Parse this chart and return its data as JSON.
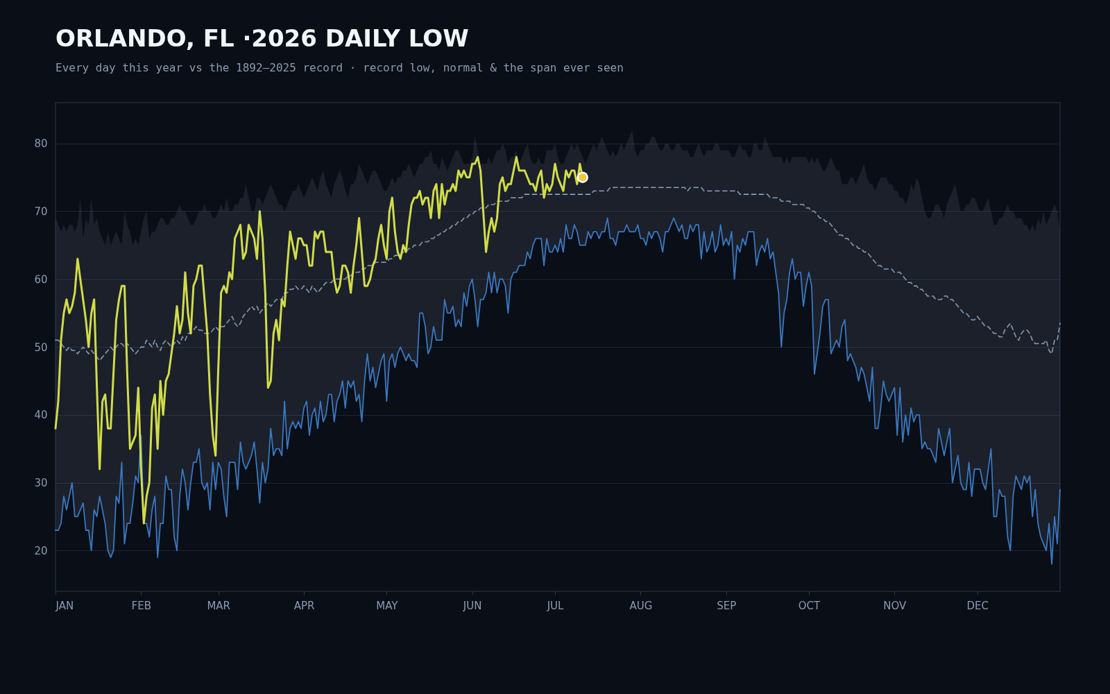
{
  "chart_data": {
    "type": "line",
    "title": "ORLANDO, FL ·2026 DAILY LOW",
    "subtitle": "Every day this year vs the 1892–2025 record · record low, normal & the span ever seen",
    "x": [
      "2026-01-01",
      "2026-01-02",
      "2026-01-03",
      "2026-01-04",
      "2026-01-05",
      "2026-01-06",
      "2026-01-07",
      "2026-01-08",
      "2026-01-09",
      "2026-01-10",
      "2026-01-11",
      "2026-01-12",
      "2026-01-13",
      "2026-01-14",
      "2026-01-15",
      "2026-01-16",
      "2026-01-17",
      "2026-01-18",
      "2026-01-19",
      "2026-01-20",
      "2026-01-21",
      "2026-01-22",
      "2026-01-23",
      "2026-01-24",
      "2026-01-25",
      "2026-01-26",
      "2026-01-27",
      "2026-01-28",
      "2026-01-29",
      "2026-01-30",
      "2026-01-31",
      "2026-02-01",
      "2026-02-02",
      "2026-02-03",
      "2026-02-04",
      "2026-02-05",
      "2026-02-06",
      "2026-02-07",
      "2026-02-08",
      "2026-02-09",
      "2026-02-10",
      "2026-02-11",
      "2026-02-12",
      "2026-02-13",
      "2026-02-14",
      "2026-02-15",
      "2026-02-16",
      "2026-02-17",
      "2026-02-18",
      "2026-02-19",
      "2026-02-20",
      "2026-02-21",
      "2026-02-22",
      "2026-02-23",
      "2026-02-24",
      "2026-02-25",
      "2026-02-26",
      "2026-02-27",
      "2026-02-28",
      "2026-03-01",
      "2026-03-02",
      "2026-03-03",
      "2026-03-04",
      "2026-03-05",
      "2026-03-06",
      "2026-03-07",
      "2026-03-08",
      "2026-03-09",
      "2026-03-10",
      "2026-03-11",
      "2026-03-12",
      "2026-03-13",
      "2026-03-14",
      "2026-03-15",
      "2026-03-16",
      "2026-03-17",
      "2026-03-18",
      "2026-03-19",
      "2026-03-20",
      "2026-03-21",
      "2026-03-22",
      "2026-03-23",
      "2026-03-24",
      "2026-03-25",
      "2026-03-26",
      "2026-03-27",
      "2026-03-28",
      "2026-03-29",
      "2026-03-30",
      "2026-03-31",
      "2026-04-01",
      "2026-04-02",
      "2026-04-03",
      "2026-04-04",
      "2026-04-05",
      "2026-04-06",
      "2026-04-07",
      "2026-04-08",
      "2026-04-09",
      "2026-04-10",
      "2026-04-11",
      "2026-04-12",
      "2026-04-13",
      "2026-04-14",
      "2026-04-15",
      "2026-04-16",
      "2026-04-17",
      "2026-04-18",
      "2026-04-19",
      "2026-04-20",
      "2026-04-21",
      "2026-04-22",
      "2026-04-23",
      "2026-04-24",
      "2026-04-25",
      "2026-04-26",
      "2026-04-27",
      "2026-04-28",
      "2026-04-29",
      "2026-04-30",
      "2026-05-01",
      "2026-05-02",
      "2026-05-03",
      "2026-05-04",
      "2026-05-05",
      "2026-05-06",
      "2026-05-07",
      "2026-05-08",
      "2026-05-09",
      "2026-05-10",
      "2026-05-11",
      "2026-05-12",
      "2026-05-13",
      "2026-05-14",
      "2026-05-15",
      "2026-05-16",
      "2026-05-17",
      "2026-05-18",
      "2026-05-19",
      "2026-05-20",
      "2026-05-21",
      "2026-05-22",
      "2026-05-23",
      "2026-05-24",
      "2026-05-25",
      "2026-05-26",
      "2026-05-27",
      "2026-05-28",
      "2026-05-29",
      "2026-05-30",
      "2026-05-31",
      "2026-06-01",
      "2026-06-02",
      "2026-06-03",
      "2026-06-04",
      "2026-06-05",
      "2026-06-06",
      "2026-06-07",
      "2026-06-08",
      "2026-06-09",
      "2026-06-10",
      "2026-06-11",
      "2026-06-12",
      "2026-06-13",
      "2026-06-14",
      "2026-06-15",
      "2026-06-16",
      "2026-06-17",
      "2026-06-18",
      "2026-06-19",
      "2026-06-20",
      "2026-06-21",
      "2026-06-22",
      "2026-06-23",
      "2026-06-24",
      "2026-06-25",
      "2026-06-26",
      "2026-06-27",
      "2026-06-28",
      "2026-06-29",
      "2026-06-30",
      "2026-07-01",
      "2026-07-02",
      "2026-07-03",
      "2026-07-04",
      "2026-07-05",
      "2026-07-06",
      "2026-07-07",
      "2026-07-08",
      "2026-07-09",
      "2026-07-10",
      "2026-07-11",
      "2026-07-12",
      "2026-07-13",
      "2026-07-14",
      "2026-07-15",
      "2026-07-16",
      "2026-07-17",
      "2026-07-18",
      "2026-07-19",
      "2026-07-20",
      "2026-07-21",
      "2026-07-22",
      "2026-07-23",
      "2026-07-24",
      "2026-07-25",
      "2026-07-26",
      "2026-07-27",
      "2026-07-28",
      "2026-07-29",
      "2026-07-30",
      "2026-07-31",
      "2026-08-01",
      "2026-08-02",
      "2026-08-03",
      "2026-08-04",
      "2026-08-05",
      "2026-08-06",
      "2026-08-07",
      "2026-08-08",
      "2026-08-09",
      "2026-08-10",
      "2026-08-11",
      "2026-08-12",
      "2026-08-13",
      "2026-08-14",
      "2026-08-15",
      "2026-08-16",
      "2026-08-17",
      "2026-08-18",
      "2026-08-19",
      "2026-08-20",
      "2026-08-21",
      "2026-08-22",
      "2026-08-23",
      "2026-08-24",
      "2026-08-25",
      "2026-08-26",
      "2026-08-27",
      "2026-08-28",
      "2026-08-29",
      "2026-08-30",
      "2026-08-31",
      "2026-09-01",
      "2026-09-02",
      "2026-09-03",
      "2026-09-04",
      "2026-09-05",
      "2026-09-06",
      "2026-09-07",
      "2026-09-08",
      "2026-09-09",
      "2026-09-10",
      "2026-09-11",
      "2026-09-12",
      "2026-09-13",
      "2026-09-14",
      "2026-09-15",
      "2026-09-16",
      "2026-09-17",
      "2026-09-18",
      "2026-09-19",
      "2026-09-20",
      "2026-09-21",
      "2026-09-22",
      "2026-09-23",
      "2026-09-24",
      "2026-09-25",
      "2026-09-26",
      "2026-09-27",
      "2026-09-28",
      "2026-09-29",
      "2026-09-30",
      "2026-10-01",
      "2026-10-02",
      "2026-10-03",
      "2026-10-04",
      "2026-10-05",
      "2026-10-06",
      "2026-10-07",
      "2026-10-08",
      "2026-10-09",
      "2026-10-10",
      "2026-10-11",
      "2026-10-12",
      "2026-10-13",
      "2026-10-14",
      "2026-10-15",
      "2026-10-16",
      "2026-10-17",
      "2026-10-18",
      "2026-10-19",
      "2026-10-20",
      "2026-10-21",
      "2026-10-22",
      "2026-10-23",
      "2026-10-24",
      "2026-10-25",
      "2026-10-26",
      "2026-10-27",
      "2026-10-28",
      "2026-10-29",
      "2026-10-30",
      "2026-10-31",
      "2026-11-01",
      "2026-11-02",
      "2026-11-03",
      "2026-11-04",
      "2026-11-05",
      "2026-11-06",
      "2026-11-07",
      "2026-11-08",
      "2026-11-09",
      "2026-11-10",
      "2026-11-11",
      "2026-11-12",
      "2026-11-13",
      "2026-11-14",
      "2026-11-15",
      "2026-11-16",
      "2026-11-17",
      "2026-11-18",
      "2026-11-19",
      "2026-11-20",
      "2026-11-21",
      "2026-11-22",
      "2026-11-23",
      "2026-11-24",
      "2026-11-25",
      "2026-11-26",
      "2026-11-27",
      "2026-11-28",
      "2026-11-29",
      "2026-11-30",
      "2026-12-01",
      "2026-12-02",
      "2026-12-03",
      "2026-12-04",
      "2026-12-05",
      "2026-12-06",
      "2026-12-07",
      "2026-12-08",
      "2026-12-09",
      "2026-12-10",
      "2026-12-11",
      "2026-12-12",
      "2026-12-13",
      "2026-12-14",
      "2026-12-15",
      "2026-12-16",
      "2026-12-17",
      "2026-12-18",
      "2026-12-19",
      "2026-12-20",
      "2026-12-21",
      "2026-12-22",
      "2026-12-23",
      "2026-12-24",
      "2026-12-25",
      "2026-12-26",
      "2026-12-27",
      "2026-12-28",
      "2026-12-29",
      "2026-12-30",
      "2026-12-31"
    ],
    "series": [
      {
        "color": "#7d8fa3",
        "line_style": "dashed",
        "values": [
          51,
          51,
          50.5,
          50,
          49.5,
          50,
          49.5,
          49.5,
          49,
          49.5,
          50,
          49.5,
          49,
          49.5,
          49,
          48.5,
          48,
          48.5,
          49,
          49.5,
          50,
          49.5,
          50,
          50.5,
          50.5,
          50,
          50.5,
          50,
          49.5,
          49,
          49.5,
          50,
          50,
          51,
          50.5,
          50,
          51,
          50,
          49.5,
          50.5,
          51,
          50.5,
          50,
          50.5,
          51,
          50.5,
          51.5,
          51,
          52,
          52,
          52.5,
          53,
          52.5,
          52.5,
          52,
          52,
          52,
          52.5,
          53,
          52.5,
          53,
          53,
          53.5,
          54,
          54.5,
          53.5,
          53,
          53.5,
          54.5,
          55,
          55.5,
          56,
          55.5,
          56,
          55,
          55.5,
          56,
          56.5,
          56,
          56.5,
          57,
          57,
          57,
          58,
          58,
          58.5,
          58.5,
          59,
          58.5,
          58.5,
          59,
          58.5,
          58,
          59,
          58.5,
          58,
          58.5,
          59,
          59.5,
          59.5,
          59.5,
          60,
          60,
          60,
          60,
          60,
          60.5,
          60.5,
          61,
          61,
          61,
          61.5,
          61.5,
          62,
          62,
          62,
          62.5,
          62.5,
          62.5,
          62.5,
          62.5,
          63,
          63,
          63.5,
          63.5,
          63.5,
          64,
          64,
          64.5,
          64.5,
          65,
          65,
          65,
          65.5,
          65.5,
          65.5,
          66,
          66,
          66.5,
          66.5,
          67,
          67,
          67.5,
          67.5,
          68,
          68,
          68.5,
          68.5,
          69,
          69,
          69.5,
          69.5,
          70,
          70,
          70.5,
          70.5,
          70.5,
          71,
          71,
          71,
          71.5,
          71.5,
          71.5,
          71.5,
          71.5,
          72,
          72,
          72,
          72,
          72,
          72.5,
          72.5,
          72.5,
          72.5,
          72.5,
          72.5,
          72.5,
          72.5,
          72.5,
          72.5,
          72.5,
          72.5,
          72.5,
          72.5,
          72.5,
          72.5,
          72.5,
          72.5,
          72.5,
          72.5,
          72.5,
          72.5,
          72.5,
          72.5,
          72.5,
          73,
          73,
          73,
          73,
          73,
          73,
          73.5,
          73.5,
          73.5,
          73.5,
          73.5,
          73.5,
          73.5,
          73.5,
          73.5,
          73.5,
          73.5,
          73.5,
          73.5,
          73.5,
          73.5,
          73.5,
          73.5,
          73.5,
          73.5,
          73.5,
          73.5,
          73.5,
          73.5,
          73.5,
          73.5,
          73.5,
          73.5,
          73.5,
          73,
          73.5,
          73.5,
          73.5,
          73.5,
          73.5,
          73,
          73,
          73,
          73,
          73,
          73,
          73,
          73,
          73,
          73,
          73,
          73,
          73,
          72.5,
          72.5,
          72.5,
          72.5,
          72.5,
          72.5,
          72.5,
          72.5,
          72.5,
          72.5,
          72.5,
          72,
          72,
          72,
          72,
          71.5,
          71.5,
          71.5,
          71.5,
          71,
          71,
          71,
          71,
          71,
          70.5,
          70.5,
          70,
          70,
          69.5,
          69,
          69,
          68.5,
          68.5,
          68,
          67.5,
          67,
          66.5,
          66.5,
          66,
          66,
          65.5,
          65,
          65,
          64.5,
          64.5,
          64,
          64,
          63.5,
          63,
          62.5,
          62,
          62,
          61.5,
          61.5,
          61.5,
          61.5,
          61,
          61,
          61,
          60.5,
          60,
          59.5,
          59.5,
          59,
          59,
          58.5,
          58.5,
          58,
          57.5,
          57.5,
          57.5,
          57,
          57,
          57,
          57.5,
          57.5,
          57,
          57,
          56.5,
          56,
          55.5,
          55,
          55,
          54.5,
          54,
          54,
          54.5,
          54,
          53.5,
          53,
          53,
          52.5,
          52,
          52,
          51.5,
          51.5,
          52.5,
          53,
          53.5,
          52.5,
          51.5,
          51,
          52,
          52.5,
          52.5,
          52,
          51,
          50.5,
          50.5,
          50.5,
          50.5,
          51,
          49.5,
          49,
          51,
          51,
          53.5
        ],
        "lower": [
          23,
          23,
          24,
          28,
          26,
          28,
          30,
          25,
          25,
          26,
          27,
          23,
          23,
          20,
          26,
          25,
          28,
          26,
          24,
          20,
          19,
          20,
          28,
          27,
          33,
          21,
          24,
          24,
          27,
          31,
          30,
          37,
          24,
          24,
          22,
          26,
          28,
          19,
          24,
          24,
          31,
          29,
          29,
          22,
          20,
          28,
          32,
          30,
          26,
          30,
          33,
          33,
          35,
          30,
          29,
          30,
          26,
          33,
          29,
          33,
          32,
          28,
          25,
          33,
          33,
          33,
          29,
          36,
          33,
          32,
          33,
          34,
          36,
          32,
          27,
          33,
          30,
          32,
          38,
          34,
          35,
          35,
          34,
          42,
          35,
          38,
          39,
          38,
          39,
          38,
          41,
          42,
          37,
          40,
          41,
          38,
          42,
          39,
          40,
          43,
          43,
          39,
          42,
          43,
          45,
          41,
          45,
          44,
          45,
          42,
          43,
          39,
          45,
          49,
          45,
          47,
          44,
          46,
          48,
          49,
          42,
          48,
          49,
          47,
          49,
          50,
          49,
          48,
          49,
          48,
          48,
          47,
          55,
          55,
          53,
          49,
          50,
          53,
          51,
          51,
          51,
          57,
          55,
          55,
          56,
          53,
          54,
          53,
          58,
          56,
          59,
          60,
          57,
          53,
          57,
          57,
          58,
          61,
          58,
          61,
          58,
          60,
          60,
          59,
          55,
          60,
          61,
          61,
          62,
          62,
          62,
          64,
          63,
          65,
          66,
          66,
          66,
          62,
          66,
          64,
          64,
          65,
          64,
          66,
          64,
          68,
          66,
          66,
          68,
          67,
          65,
          65,
          65,
          67,
          66,
          67,
          67,
          66,
          67,
          67,
          69,
          66,
          66,
          65,
          67,
          67,
          67,
          68,
          67,
          67,
          67,
          68,
          66,
          66,
          65,
          67,
          66,
          67,
          67,
          66,
          64,
          67,
          67,
          68,
          69,
          68,
          67,
          68,
          66,
          66,
          68,
          67,
          68,
          68,
          63,
          67,
          64,
          65,
          67,
          64,
          65,
          68,
          65,
          66,
          65,
          67,
          60,
          65,
          64,
          66,
          65,
          67,
          67,
          67,
          62,
          64,
          65,
          64,
          66,
          63,
          64,
          61,
          58,
          50,
          55,
          57,
          61,
          63,
          60,
          61,
          61,
          56,
          59,
          61,
          59,
          46,
          49,
          52,
          56,
          57,
          57,
          49,
          50,
          51,
          50,
          53,
          54,
          48,
          49,
          48,
          47,
          45,
          47,
          46,
          44,
          42,
          47,
          38,
          38,
          41,
          45,
          43,
          42,
          43,
          44,
          37,
          44,
          36,
          40,
          37,
          41,
          39,
          40,
          40,
          35,
          36,
          35,
          35,
          34,
          33,
          38,
          36,
          34,
          36,
          38,
          30,
          32,
          34,
          30,
          29,
          29,
          33,
          28,
          32,
          32,
          32,
          30,
          29,
          32,
          35,
          25,
          25,
          29,
          28,
          28,
          22,
          20,
          28,
          31,
          30,
          29,
          31,
          30,
          31,
          25,
          29,
          24,
          22,
          21,
          20,
          24,
          18,
          25,
          21,
          29
        ],
        "upper": [
          69,
          68,
          67,
          68,
          67,
          68,
          68,
          67,
          68,
          72,
          66,
          69,
          68,
          72,
          68,
          69,
          67,
          66,
          65,
          67,
          65,
          66,
          67,
          66,
          65,
          70,
          68,
          67,
          65,
          66,
          65,
          67,
          69,
          70,
          66,
          67,
          67,
          68,
          69,
          69,
          68,
          68,
          69,
          69,
          70,
          71,
          70,
          70,
          69,
          68,
          68,
          69,
          70,
          70,
          71,
          70,
          70,
          69,
          69,
          70,
          71,
          70,
          72,
          70,
          70,
          71,
          71,
          72,
          72,
          74,
          72,
          70,
          70,
          72,
          72,
          71,
          72,
          73,
          74,
          73,
          72,
          71,
          71,
          70,
          71,
          72,
          73,
          73,
          74,
          73,
          72,
          73,
          74,
          75,
          74,
          73,
          75,
          76,
          74,
          73,
          72,
          74,
          75,
          76,
          75,
          73,
          72,
          74,
          74,
          75,
          77,
          76,
          75,
          74,
          75,
          76,
          76,
          75,
          74,
          73,
          73,
          74,
          75,
          74,
          75,
          75,
          76,
          76,
          77,
          76,
          75,
          76,
          77,
          77,
          78,
          78,
          79,
          77,
          77,
          76,
          78,
          77,
          76,
          77,
          78,
          79,
          79,
          78,
          77,
          77,
          77,
          78,
          81,
          79,
          77,
          77,
          77,
          78,
          77,
          78,
          79,
          79,
          80,
          79,
          77,
          78,
          78,
          79,
          77,
          78,
          79,
          80,
          78,
          77,
          77,
          78,
          77,
          77,
          79,
          79,
          79,
          80,
          78,
          77,
          77,
          78,
          79,
          80,
          79,
          80,
          79,
          78,
          77,
          78,
          79,
          80,
          79,
          80,
          81,
          80,
          79,
          78,
          79,
          78,
          79,
          80,
          79,
          80,
          81,
          82,
          79,
          78,
          79,
          79,
          80,
          80,
          81,
          81,
          80,
          79,
          79,
          80,
          80,
          79,
          79,
          80,
          80,
          79,
          79,
          79,
          78,
          78,
          79,
          80,
          79,
          78,
          79,
          79,
          79,
          80,
          80,
          79,
          79,
          79,
          79,
          78,
          78,
          79,
          80,
          79,
          79,
          78,
          78,
          80,
          80,
          79,
          79,
          81,
          80,
          79,
          78,
          78,
          78,
          78,
          77,
          78,
          77,
          78,
          78,
          78,
          78,
          78,
          78,
          77,
          78,
          77,
          78,
          77,
          76,
          76,
          77,
          78,
          77,
          76,
          76,
          74,
          74,
          74,
          75,
          75,
          74,
          75,
          76,
          77,
          75,
          74,
          74,
          73,
          74,
          75,
          75,
          75,
          74,
          74,
          73,
          73,
          72,
          72,
          71,
          72,
          74,
          73,
          75,
          74,
          72,
          70,
          69,
          69,
          70,
          71,
          71,
          70,
          69,
          71,
          72,
          73,
          74,
          72,
          70,
          70,
          71,
          71,
          72,
          72,
          71,
          70,
          70,
          71,
          72,
          70,
          68,
          68,
          69,
          69,
          70,
          71,
          70,
          70,
          69,
          69,
          69,
          68,
          68,
          67,
          68,
          67,
          69,
          68,
          70,
          68,
          69,
          70,
          71,
          70,
          67
        ]
      },
      {
        "color": "#3a78c0",
        "values": [
          23,
          23,
          24,
          28,
          26,
          28,
          30,
          25,
          25,
          26,
          27,
          23,
          23,
          20,
          26,
          25,
          28,
          26,
          24,
          20,
          19,
          20,
          28,
          27,
          33,
          21,
          24,
          24,
          27,
          31,
          30,
          37,
          24,
          24,
          22,
          26,
          28,
          19,
          24,
          24,
          31,
          29,
          29,
          22,
          20,
          28,
          32,
          30,
          26,
          30,
          33,
          33,
          35,
          30,
          29,
          30,
          26,
          33,
          29,
          33,
          32,
          28,
          25,
          33,
          33,
          33,
          29,
          36,
          33,
          32,
          33,
          34,
          36,
          32,
          27,
          33,
          30,
          32,
          38,
          34,
          35,
          35,
          34,
          42,
          35,
          38,
          39,
          38,
          39,
          38,
          41,
          42,
          37,
          40,
          41,
          38,
          42,
          39,
          40,
          43,
          43,
          39,
          42,
          43,
          45,
          41,
          45,
          44,
          45,
          42,
          43,
          39,
          45,
          49,
          45,
          47,
          44,
          46,
          48,
          49,
          42,
          48,
          49,
          47,
          49,
          50,
          49,
          48,
          49,
          48,
          48,
          47,
          55,
          55,
          53,
          49,
          50,
          53,
          51,
          51,
          51,
          57,
          55,
          55,
          56,
          53,
          54,
          53,
          58,
          56,
          59,
          60,
          57,
          53,
          57,
          57,
          58,
          61,
          58,
          61,
          58,
          60,
          60,
          59,
          55,
          60,
          61,
          61,
          62,
          62,
          62,
          64,
          63,
          65,
          66,
          66,
          66,
          62,
          66,
          64,
          64,
          65,
          64,
          66,
          64,
          68,
          66,
          66,
          68,
          67,
          65,
          65,
          65,
          67,
          66,
          67,
          67,
          66,
          67,
          67,
          69,
          66,
          66,
          65,
          67,
          67,
          67,
          68,
          67,
          67,
          67,
          68,
          66,
          66,
          65,
          67,
          66,
          67,
          67,
          66,
          64,
          67,
          67,
          68,
          69,
          68,
          67,
          68,
          66,
          66,
          68,
          67,
          68,
          68,
          63,
          67,
          64,
          65,
          67,
          64,
          65,
          68,
          65,
          66,
          65,
          67,
          60,
          65,
          64,
          66,
          65,
          67,
          67,
          67,
          62,
          64,
          65,
          64,
          66,
          63,
          64,
          61,
          58,
          50,
          55,
          57,
          61,
          63,
          60,
          61,
          61,
          56,
          59,
          61,
          59,
          46,
          49,
          52,
          56,
          57,
          57,
          49,
          50,
          51,
          50,
          53,
          54,
          48,
          49,
          48,
          47,
          45,
          47,
          46,
          44,
          42,
          47,
          38,
          38,
          41,
          45,
          43,
          42,
          43,
          44,
          37,
          44,
          36,
          40,
          37,
          41,
          39,
          40,
          40,
          35,
          36,
          35,
          35,
          34,
          33,
          38,
          36,
          34,
          36,
          38,
          30,
          32,
          34,
          30,
          29,
          29,
          33,
          28,
          32,
          32,
          32,
          30,
          29,
          32,
          35,
          25,
          25,
          29,
          28,
          28,
          22,
          20,
          28,
          31,
          30,
          29,
          31,
          30,
          31,
          25,
          29,
          24,
          22,
          21,
          20,
          24,
          18,
          25,
          21,
          29
        ]
      },
      {
        "color": "#d2dc48",
        "values": [
          38,
          42,
          51,
          55,
          57,
          55,
          56,
          58,
          63,
          60,
          57,
          54,
          50,
          55,
          57,
          44,
          32,
          42,
          43,
          38,
          38,
          46,
          54,
          57,
          59,
          59,
          46,
          35,
          36,
          37,
          44,
          32,
          24,
          28,
          30,
          41,
          43,
          35,
          45,
          40,
          45,
          46,
          49,
          52,
          56,
          52,
          54,
          61,
          55,
          52,
          59,
          60,
          62,
          62,
          57,
          52,
          43,
          37,
          34,
          47,
          58,
          59,
          58,
          61,
          60,
          66,
          67,
          68,
          63,
          64,
          68,
          67,
          66,
          63,
          70,
          66,
          58,
          44,
          45,
          52,
          54,
          51,
          57,
          56,
          62,
          67,
          65,
          63,
          66,
          66,
          65,
          65,
          62,
          62,
          67,
          66,
          67,
          67,
          64,
          64,
          64,
          60,
          58,
          59,
          62,
          62,
          61,
          58,
          62,
          65,
          69,
          64,
          59,
          59,
          60,
          62,
          63,
          66,
          68,
          65,
          63,
          70,
          72,
          67,
          64,
          63,
          65,
          64,
          68,
          71,
          72,
          72,
          73,
          71,
          72,
          72,
          69,
          73,
          74,
          69,
          74,
          71,
          73,
          73,
          74,
          73,
          76,
          75,
          76,
          75,
          75,
          77,
          77,
          78,
          76,
          70,
          64,
          67,
          69,
          67,
          69,
          74,
          75,
          73,
          74,
          74,
          76,
          78,
          76,
          76,
          76,
          75,
          74,
          74,
          73,
          75,
          76,
          72,
          74,
          73,
          74,
          77,
          75,
          74,
          73,
          76,
          75,
          76,
          76,
          74,
          77,
          75,
          null,
          null,
          null,
          null,
          null,
          null,
          null,
          null,
          null,
          null,
          null,
          null,
          null,
          null,
          null,
          null,
          null,
          null,
          null,
          null,
          null,
          null,
          null,
          null,
          null,
          null,
          null,
          null,
          null,
          null,
          null,
          null,
          null,
          null,
          null,
          null,
          null,
          null,
          null,
          null,
          null,
          null,
          null,
          null,
          null,
          null,
          null,
          null,
          null,
          null,
          null,
          null,
          null,
          null,
          null,
          null,
          null,
          null,
          null,
          null,
          null,
          null,
          null,
          null,
          null,
          null,
          null,
          null,
          null,
          null,
          null,
          null,
          null,
          null,
          null,
          null,
          null,
          null,
          null,
          null,
          null,
          null,
          null,
          null,
          null,
          null,
          null,
          null,
          null,
          null,
          null,
          null,
          null,
          null,
          null,
          null,
          null,
          null,
          null,
          null,
          null,
          null,
          null,
          null,
          null,
          null,
          null,
          null,
          null,
          null,
          null,
          null,
          null,
          null,
          null,
          null,
          null,
          null,
          null,
          null,
          null,
          null,
          null,
          null,
          null,
          null,
          null,
          null,
          null,
          null,
          null,
          null,
          null,
          null,
          null,
          null,
          null,
          null,
          null,
          null,
          null,
          null,
          null,
          null,
          null,
          null,
          null,
          null,
          null,
          null,
          null,
          null,
          null,
          null,
          null,
          null,
          null,
          null,
          null,
          null,
          null,
          null,
          null,
          null,
          null,
          null,
          null,
          null,
          null,
          null,
          null,
          null,
          null
        ]
      },
      {
        "type": "scatter",
        "marker": "circle",
        "color": "#f0c93a",
        "x": [
          "2026-07-11"
        ],
        "values": [
          75
        ]
      }
    ],
    "xlim": [
      "2026-01-01",
      "2026-12-31"
    ],
    "xticks": [
      {
        "value": "2026-01-01",
        "label": "JAN"
      },
      {
        "value": "2026-02-01",
        "label": "FEB"
      },
      {
        "value": "2026-03-01",
        "label": "MAR"
      },
      {
        "value": "2026-04-01",
        "label": "APR"
      },
      {
        "value": "2026-05-01",
        "label": "MAY"
      },
      {
        "value": "2026-06-01",
        "label": "JUN"
      },
      {
        "value": "2026-07-01",
        "label": "JUL"
      },
      {
        "value": "2026-08-01",
        "label": "AUG"
      },
      {
        "value": "2026-09-01",
        "label": "SEP"
      },
      {
        "value": "2026-10-01",
        "label": "OCT"
      },
      {
        "value": "2026-11-01",
        "label": "NOV"
      },
      {
        "value": "2026-12-01",
        "label": "DEC"
      }
    ],
    "ylim": [
      14,
      86
    ],
    "yticks": [
      20,
      30,
      40,
      50,
      60,
      70,
      80
    ],
    "grid": "y"
  }
}
